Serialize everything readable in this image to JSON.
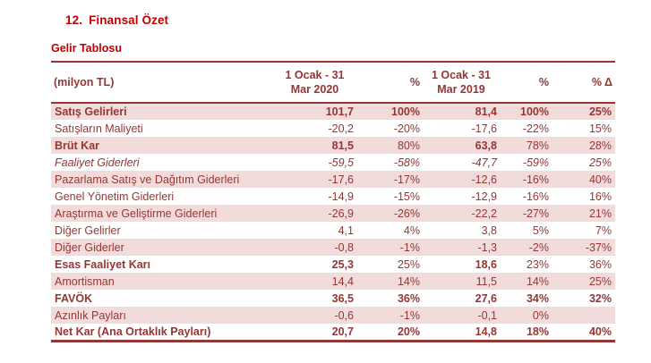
{
  "header": {
    "number": "12.",
    "title": "Finansal Özet"
  },
  "table": {
    "title": "Gelir Tablosu",
    "unit_label": "(milyon TL)",
    "columns": [
      "1 Ocak - 31\nMar 2020",
      "%",
      "1 Ocak - 31\nMar 2019",
      "%",
      "% Δ"
    ],
    "rows": [
      {
        "label": "Satış Gelirleri",
        "label_style": "b",
        "values": [
          "101,7",
          "100%",
          "81,4",
          "100%",
          "25%"
        ],
        "value_styles": [
          "b",
          "b",
          "b",
          "b",
          "b"
        ]
      },
      {
        "label": "Satışların Maliyeti",
        "label_style": "r",
        "values": [
          "-20,2",
          "-20%",
          "-17,6",
          "-22%",
          "15%"
        ],
        "value_styles": [
          "r",
          "r",
          "r",
          "r",
          "r"
        ]
      },
      {
        "label": "Brüt Kar",
        "label_style": "b",
        "values": [
          "81,5",
          "80%",
          "63,8",
          "78%",
          "28%"
        ],
        "value_styles": [
          "b",
          "r",
          "b",
          "r",
          "r"
        ]
      },
      {
        "label": "Faaliyet Giderleri",
        "label_style": "i",
        "values": [
          "-59,5",
          "-58%",
          "-47,7",
          "-59%",
          "25%"
        ],
        "value_styles": [
          "i",
          "i",
          "i",
          "i",
          "i"
        ]
      },
      {
        "label": "Pazarlama Satış ve Dağıtım Giderleri",
        "label_style": "r",
        "values": [
          "-17,6",
          "-17%",
          "-12,6",
          "-16%",
          "40%"
        ],
        "value_styles": [
          "r",
          "r",
          "r",
          "r",
          "r"
        ]
      },
      {
        "label": "Genel Yönetim Giderleri",
        "label_style": "r",
        "values": [
          "-14,9",
          "-15%",
          "-12,9",
          "-16%",
          "16%"
        ],
        "value_styles": [
          "r",
          "r",
          "r",
          "r",
          "r"
        ]
      },
      {
        "label": "Araştırma ve Geliştirme Giderleri",
        "label_style": "r",
        "values": [
          "-26,9",
          "-26%",
          "-22,2",
          "-27%",
          "21%"
        ],
        "value_styles": [
          "r",
          "r",
          "r",
          "r",
          "r"
        ]
      },
      {
        "label": "Diğer Gelirler",
        "label_style": "r",
        "values": [
          "4,1",
          "4%",
          "3,8",
          "5%",
          "7%"
        ],
        "value_styles": [
          "r",
          "r",
          "r",
          "r",
          "r"
        ]
      },
      {
        "label": "Diğer Giderler",
        "label_style": "r",
        "values": [
          "-0,8",
          "-1%",
          "-1,3",
          "-2%",
          "-37%"
        ],
        "value_styles": [
          "r",
          "r",
          "r",
          "r",
          "r"
        ]
      },
      {
        "label": "Esas Faaliyet Karı",
        "label_style": "b",
        "values": [
          "25,3",
          "25%",
          "18,6",
          "23%",
          "36%"
        ],
        "value_styles": [
          "b",
          "r",
          "b",
          "r",
          "r"
        ]
      },
      {
        "label": "Amortisman",
        "label_style": "r",
        "values": [
          "14,4",
          "14%",
          "11,5",
          "14%",
          "25%"
        ],
        "value_styles": [
          "r",
          "r",
          "r",
          "r",
          "r"
        ]
      },
      {
        "label": "FAVÖK",
        "label_style": "b",
        "values": [
          "36,5",
          "36%",
          "27,6",
          "34%",
          "32%"
        ],
        "value_styles": [
          "b",
          "b",
          "b",
          "b",
          "b"
        ]
      },
      {
        "label": "Azınlık Payları",
        "label_style": "r",
        "values": [
          "-0,6",
          "-1%",
          "-0,1",
          "0%",
          ""
        ],
        "value_styles": [
          "r",
          "r",
          "r",
          "r",
          "r"
        ]
      },
      {
        "label": "Net Kar (Ana Ortaklık Payları)",
        "label_style": "b",
        "values": [
          "20,7",
          "20%",
          "14,8",
          "18%",
          "40%"
        ],
        "value_styles": [
          "b",
          "b",
          "b",
          "b",
          "b"
        ]
      }
    ]
  },
  "colors": {
    "heading_red": "#C00000",
    "table_maroon": "#943634",
    "row_pink": "#F2DCDB",
    "row_white": "#FFFFFF"
  }
}
